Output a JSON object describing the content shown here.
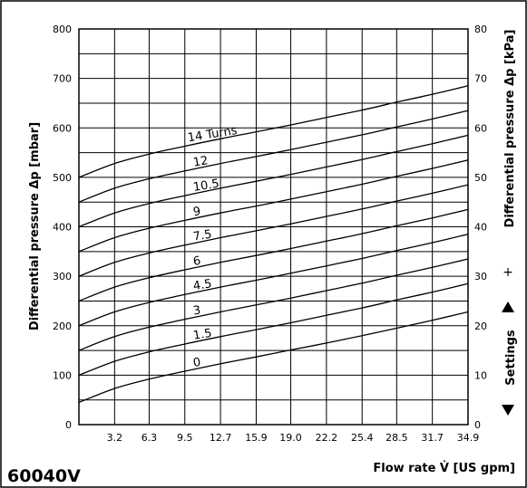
{
  "chart_data": {
    "type": "line",
    "model": "60040V",
    "ylabel": "Differential pressure Δp [mbar]",
    "y2label": "Differential pressure Δp [kPa]",
    "xlabel": "Flow rate V̇ [US gpm]",
    "settings_label": "Settings",
    "settings_plus": "+",
    "xlim": [
      0,
      34.9
    ],
    "ylim": [
      0,
      800
    ],
    "y2lim": [
      0,
      80
    ],
    "x_ticks": [
      "3.2",
      "6.3",
      "9.5",
      "12.7",
      "15.9",
      "19.0",
      "22.2",
      "25.4",
      "28.5",
      "31.7",
      "34.9"
    ],
    "y_ticks": [
      "0",
      "100",
      "200",
      "300",
      "400",
      "500",
      "600",
      "700",
      "800"
    ],
    "y2_ticks": [
      "0",
      "10",
      "20",
      "30",
      "40",
      "50",
      "60",
      "70",
      "80"
    ],
    "series": [
      {
        "name": "0",
        "x": [
          0,
          3.2,
          6.3,
          9.5,
          12.7,
          15.9,
          19.0,
          22.2,
          25.4,
          28.5,
          31.7,
          34.9
        ],
        "values": [
          45,
          73,
          92,
          108,
          123,
          137,
          151,
          165,
          180,
          195,
          211,
          228
        ]
      },
      {
        "name": "1.5",
        "x": [
          0,
          3.2,
          6.3,
          9.5,
          12.7,
          15.9,
          19.0,
          22.2,
          25.4,
          28.5,
          31.7,
          34.9
        ],
        "values": [
          100,
          128,
          147,
          163,
          178,
          192,
          206,
          221,
          236,
          252,
          268,
          285
        ]
      },
      {
        "name": "3",
        "x": [
          0,
          3.2,
          6.3,
          9.5,
          12.7,
          15.9,
          19.0,
          22.2,
          25.4,
          28.5,
          31.7,
          34.9
        ],
        "values": [
          150,
          178,
          197,
          213,
          228,
          242,
          256,
          271,
          286,
          302,
          318,
          335
        ]
      },
      {
        "name": "4.5",
        "x": [
          0,
          3.2,
          6.3,
          9.5,
          12.7,
          15.9,
          19.0,
          22.2,
          25.4,
          28.5,
          31.7,
          34.9
        ],
        "values": [
          200,
          228,
          247,
          263,
          278,
          292,
          306,
          321,
          336,
          352,
          368,
          385
        ]
      },
      {
        "name": "6",
        "x": [
          0,
          3.2,
          6.3,
          9.5,
          12.7,
          15.9,
          19.0,
          22.2,
          25.4,
          28.5,
          31.7,
          34.9
        ],
        "values": [
          250,
          278,
          297,
          313,
          328,
          342,
          356,
          371,
          386,
          402,
          418,
          435
        ]
      },
      {
        "name": "7.5",
        "x": [
          0,
          3.2,
          6.3,
          9.5,
          12.7,
          15.9,
          19.0,
          22.2,
          25.4,
          28.5,
          31.7,
          34.9
        ],
        "values": [
          300,
          328,
          347,
          363,
          378,
          392,
          406,
          421,
          436,
          452,
          468,
          485
        ]
      },
      {
        "name": "9",
        "x": [
          0,
          3.2,
          6.3,
          9.5,
          12.7,
          15.9,
          19.0,
          22.2,
          25.4,
          28.5,
          31.7,
          34.9
        ],
        "values": [
          350,
          378,
          397,
          413,
          428,
          442,
          456,
          471,
          486,
          502,
          518,
          535
        ]
      },
      {
        "name": "10.5",
        "x": [
          0,
          3.2,
          6.3,
          9.5,
          12.7,
          15.9,
          19.0,
          22.2,
          25.4,
          28.5,
          31.7,
          34.9
        ],
        "values": [
          400,
          428,
          447,
          463,
          478,
          492,
          506,
          521,
          536,
          552,
          568,
          585
        ]
      },
      {
        "name": "12",
        "x": [
          0,
          3.2,
          6.3,
          9.5,
          12.7,
          15.9,
          19.0,
          22.2,
          25.4,
          28.5,
          31.7,
          34.9
        ],
        "values": [
          450,
          478,
          497,
          513,
          528,
          542,
          556,
          571,
          586,
          602,
          618,
          635
        ]
      },
      {
        "name": "14 Turns",
        "x": [
          0,
          3.2,
          6.3,
          9.5,
          12.7,
          15.9,
          19.0,
          22.2,
          25.4,
          28.5,
          31.7,
          34.9
        ],
        "values": [
          500,
          528,
          547,
          563,
          578,
          592,
          606,
          621,
          636,
          652,
          668,
          685
        ]
      }
    ],
    "grid": true,
    "colors": {
      "line": "#000000",
      "grid": "#000000",
      "background": "#ffffff"
    }
  }
}
